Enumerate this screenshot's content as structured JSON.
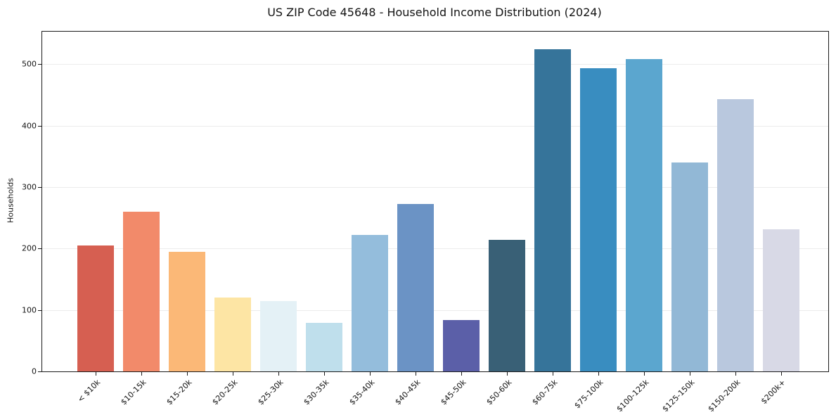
{
  "chart_data": {
    "type": "bar",
    "title": "US ZIP Code 45648 - Household Income Distribution (2024)",
    "xlabel": "",
    "ylabel": "Households",
    "categories": [
      "< $10k",
      "$10-15k",
      "$15-20k",
      "$20-25k",
      "$25-30k",
      "$30-35k",
      "$35-40k",
      "$40-45k",
      "$45-50k",
      "$50-60k",
      "$60-75k",
      "$75-100k",
      "$100-125k",
      "$125-150k",
      "$150-200k",
      "$200k+"
    ],
    "values": [
      205,
      260,
      195,
      120,
      115,
      79,
      222,
      272,
      84,
      214,
      525,
      494,
      508,
      340,
      443,
      231
    ],
    "bar_colors": [
      "#d65f51",
      "#f28a6a",
      "#fbb877",
      "#fde5a4",
      "#e4f1f6",
      "#bfdfec",
      "#94bddc",
      "#6b93c5",
      "#5b5fa8",
      "#396076",
      "#36749a",
      "#398dc0",
      "#5ba6cf",
      "#92b8d6",
      "#b9c8de",
      "#d8d9e6"
    ],
    "ylim": [
      0,
      553
    ],
    "yticks": [
      0,
      100,
      200,
      300,
      400,
      500
    ],
    "grid": "horizontal",
    "legend": "none",
    "tick_label_rotation_deg": 45,
    "background_color": "#ffffff",
    "grid_color": "#ececec",
    "axis_color": "#1a1a1a"
  }
}
